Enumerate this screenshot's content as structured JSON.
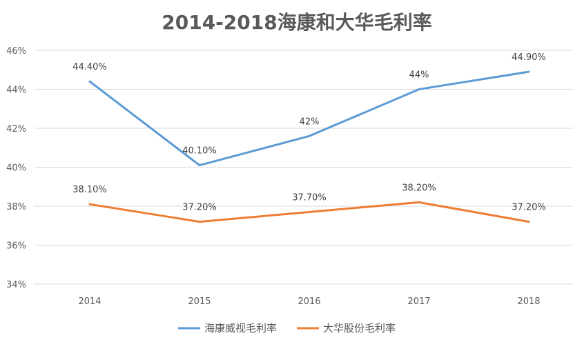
{
  "chart_data": {
    "type": "line",
    "title": "2014-2018海康和大华毛利率",
    "categories": [
      "2014",
      "2015",
      "2016",
      "2017",
      "2018"
    ],
    "ylim": [
      34,
      46
    ],
    "yticks": [
      "34%",
      "36%",
      "38%",
      "40%",
      "42%",
      "44%",
      "46%"
    ],
    "grid": true,
    "legend_position": "bottom",
    "series": [
      {
        "name": "海康威视毛利率",
        "color": "#5B9BD5",
        "values": [
          44.4,
          40.1,
          41.6,
          44.0,
          44.9
        ],
        "labels": [
          "44.40%",
          "40.10%",
          "42%",
          "44%",
          "44.90%"
        ]
      },
      {
        "name": "大华股份毛利率",
        "color": "#ED7D31",
        "values": [
          38.1,
          37.2,
          37.7,
          38.2,
          37.2
        ],
        "labels": [
          "38.10%",
          "37.20%",
          "37.70%",
          "38.20%",
          "37.20%"
        ]
      }
    ]
  }
}
